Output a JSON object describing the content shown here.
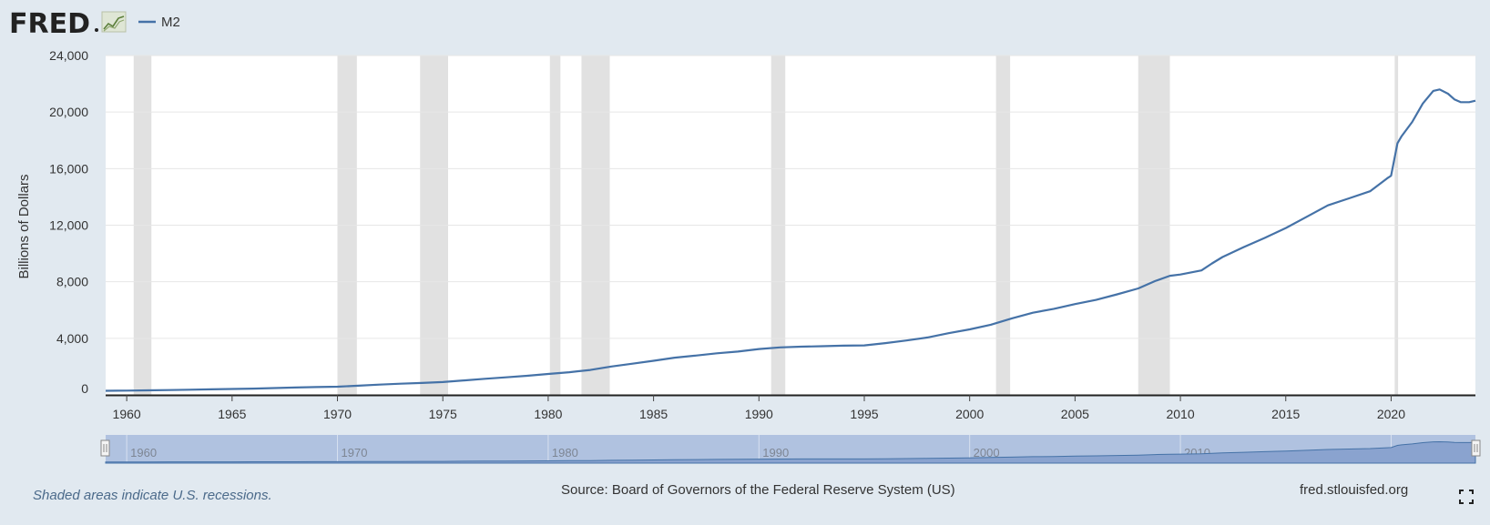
{
  "header": {
    "logo_text": "FRED",
    "legend_label": "M2",
    "logo_icon": "trend-chart-icon"
  },
  "chart_data": {
    "type": "line",
    "title": "",
    "xlabel": "",
    "ylabel": "Billions of Dollars",
    "ylim": [
      0,
      24000
    ],
    "xlim": [
      1959,
      2024.0
    ],
    "yticks": [
      "0",
      "4,000",
      "8,000",
      "12,000",
      "16,000",
      "20,000",
      "24,000"
    ],
    "xticks": [
      "1960",
      "1965",
      "1970",
      "1975",
      "1980",
      "1985",
      "1990",
      "1995",
      "2000",
      "2005",
      "2010",
      "2015",
      "2020"
    ],
    "navigator_ticks": [
      "1960",
      "1970",
      "1980",
      "1990",
      "2000",
      "2010",
      "2020"
    ],
    "grid": true,
    "legend_position": "top-left",
    "colors": {
      "line": "#4572a7",
      "recession": "#e1e1e1",
      "plot_bg": "#ffffff",
      "page_bg": "#e1e9f0",
      "navigator": "#b0c2e0"
    },
    "recessions": [
      [
        1960.33,
        1961.17
      ],
      [
        1970.0,
        1970.92
      ],
      [
        1973.92,
        1975.25
      ],
      [
        1980.08,
        1980.58
      ],
      [
        1981.58,
        1982.92
      ],
      [
        1990.58,
        1991.25
      ],
      [
        2001.25,
        2001.92
      ],
      [
        2008.0,
        2009.5
      ],
      [
        2020.17,
        2020.33
      ]
    ],
    "series": [
      {
        "name": "M2",
        "x": [
          1959.0,
          1960.0,
          1961.0,
          1962.0,
          1963.0,
          1964.0,
          1965.0,
          1966.0,
          1967.0,
          1968.0,
          1969.0,
          1970.0,
          1971.0,
          1972.0,
          1973.0,
          1974.0,
          1975.0,
          1976.0,
          1977.0,
          1978.0,
          1979.0,
          1980.0,
          1981.0,
          1982.0,
          1983.0,
          1984.0,
          1985.0,
          1986.0,
          1987.0,
          1988.0,
          1989.0,
          1990.0,
          1991.0,
          1992.0,
          1993.0,
          1994.0,
          1995.0,
          1996.0,
          1997.0,
          1998.0,
          1999.0,
          2000.0,
          2001.0,
          2002.0,
          2003.0,
          2004.0,
          2005.0,
          2006.0,
          2007.0,
          2008.0,
          2008.8,
          2009.5,
          2010.0,
          2011.0,
          2011.5,
          2012.0,
          2013.0,
          2014.0,
          2015.0,
          2016.0,
          2017.0,
          2018.0,
          2019.0,
          2019.8,
          2020.0,
          2020.3,
          2020.5,
          2021.0,
          2021.5,
          2022.0,
          2022.3,
          2022.7,
          2023.0,
          2023.3,
          2023.7,
          2024.0
        ],
        "values": [
          290,
          300,
          320,
          340,
          365,
          390,
          420,
          445,
          480,
          520,
          555,
          580,
          650,
          725,
          790,
          840,
          910,
          1020,
          1140,
          1240,
          1350,
          1480,
          1600,
          1760,
          2010,
          2210,
          2410,
          2630,
          2780,
          2940,
          3060,
          3240,
          3360,
          3410,
          3440,
          3480,
          3500,
          3660,
          3850,
          4060,
          4360,
          4630,
          4960,
          5410,
          5810,
          6090,
          6420,
          6720,
          7110,
          7530,
          8050,
          8420,
          8510,
          8800,
          9300,
          9750,
          10450,
          11100,
          11800,
          12600,
          13400,
          13900,
          14400,
          15300,
          15500,
          17800,
          18300,
          19300,
          20600,
          21500,
          21600,
          21300,
          20900,
          20700,
          20700,
          20800
        ]
      }
    ]
  },
  "footer": {
    "note": "Shaded areas indicate U.S. recessions.",
    "source": "Source: Board of Governors of the Federal Reserve System (US)",
    "site": "fred.stlouisfed.org"
  }
}
